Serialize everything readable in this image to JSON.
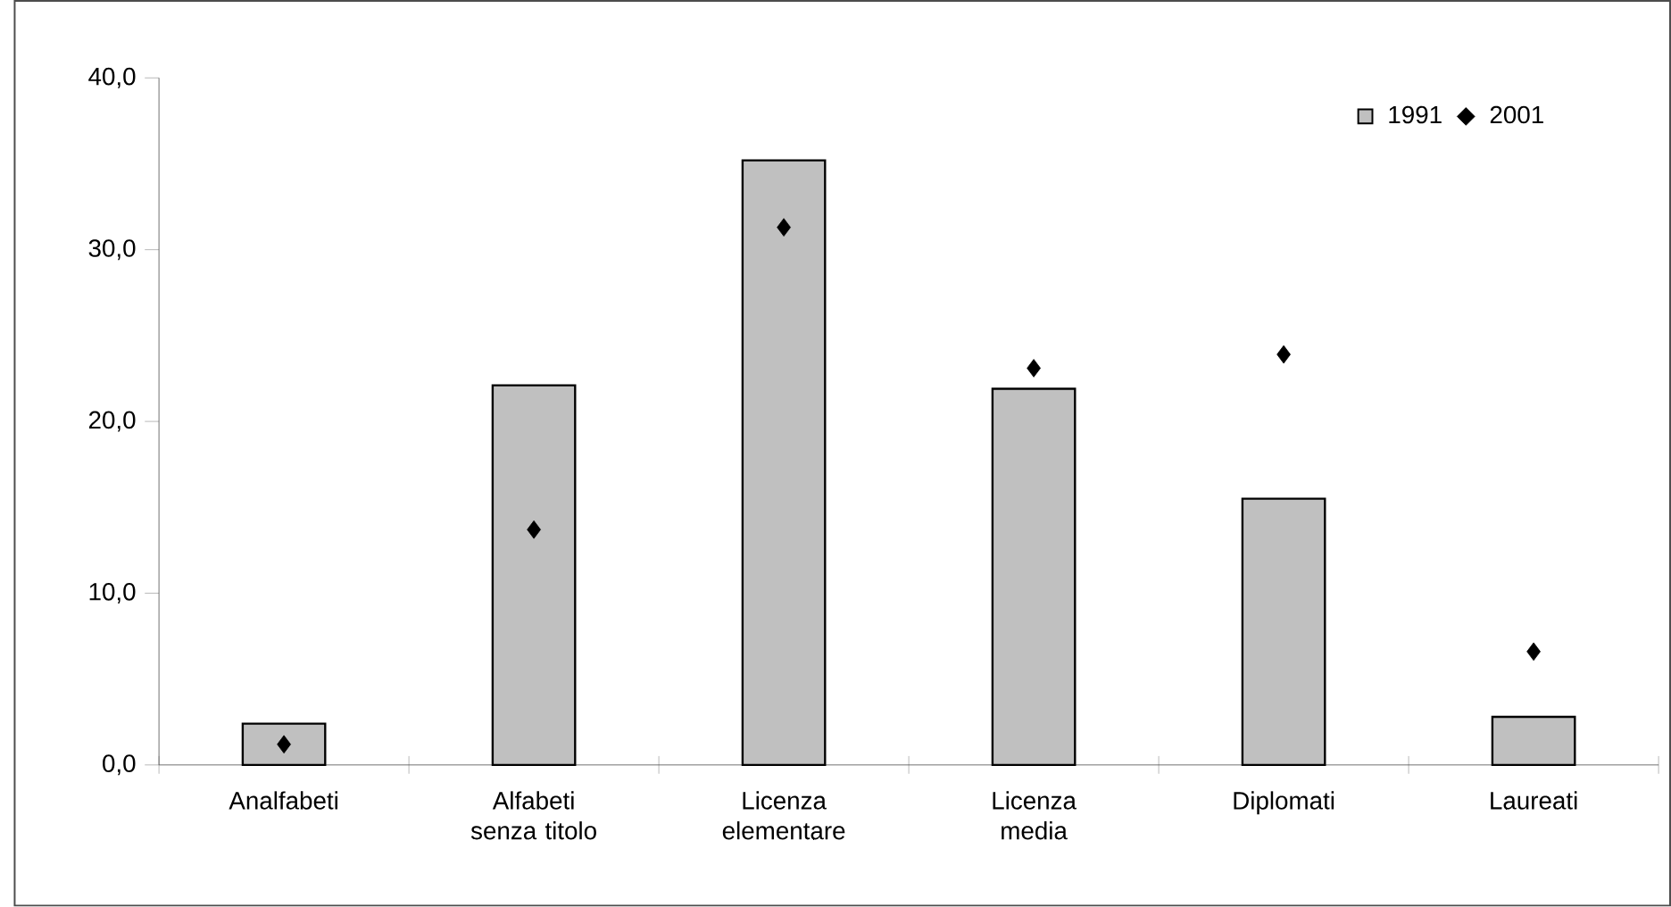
{
  "chart_data": {
    "type": "bar",
    "categories": [
      "Analfabeti",
      "Alfabeti senza titolo",
      "Licenza elementare",
      "Licenza media",
      "Diplomati",
      "Laureati"
    ],
    "series": [
      {
        "name": "1991",
        "color": "#c0c0c0",
        "values": [
          2.4,
          22.1,
          35.2,
          21.9,
          15.5,
          2.8
        ]
      },
      {
        "name": "2001",
        "type": "scatter",
        "color": "#000000",
        "marker": "diamond",
        "values": [
          1.2,
          13.7,
          31.3,
          23.1,
          23.9,
          6.6
        ]
      }
    ],
    "ylim": [
      0,
      40
    ],
    "yticks": [
      {
        "value": 0,
        "label": "0,0"
      },
      {
        "value": 10,
        "label": "10,0"
      },
      {
        "value": 20,
        "label": "20,0"
      },
      {
        "value": 30,
        "label": "30,0"
      },
      {
        "value": 40,
        "label": "40,0"
      }
    ],
    "legend": "top right"
  }
}
